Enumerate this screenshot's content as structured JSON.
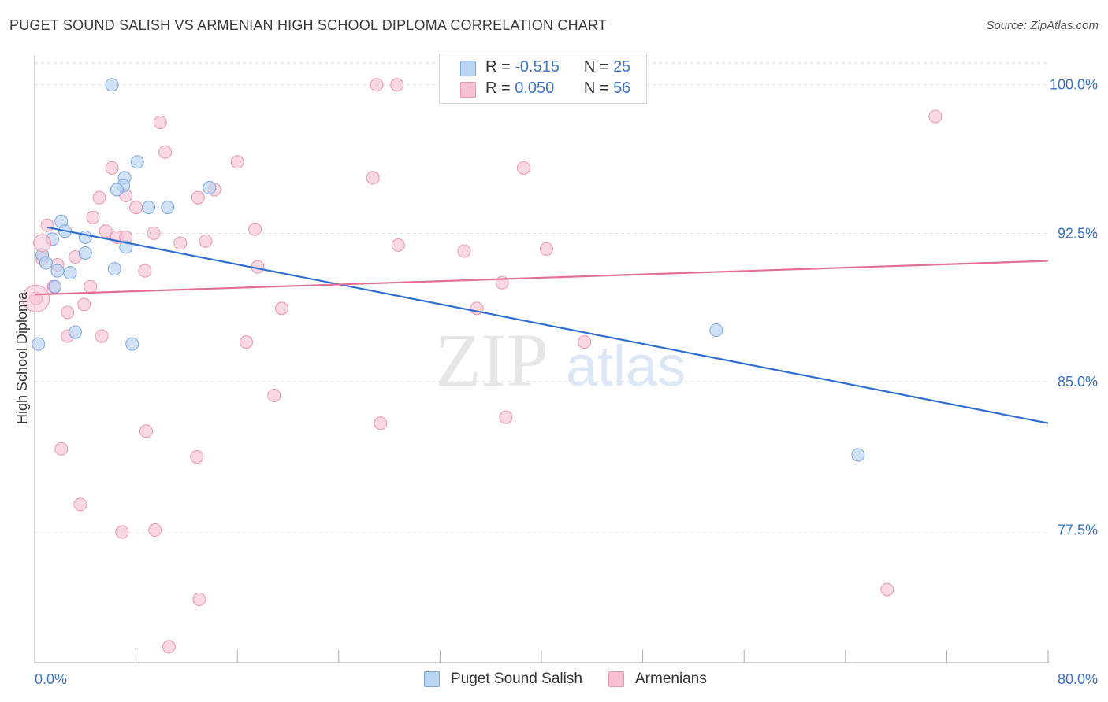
{
  "title": "PUGET SOUND SALISH VS ARMENIAN HIGH SCHOOL DIPLOMA CORRELATION CHART",
  "source": "Source: ZipAtlas.com",
  "watermark": {
    "zip": "ZIP",
    "atlas": "atlas"
  },
  "legend": {
    "r_label": "R =",
    "n_label": "N =",
    "rows": [
      {
        "r": "-0.515",
        "n": "25"
      },
      {
        "r": "0.050",
        "n": "56"
      }
    ]
  },
  "colors": {
    "blue_fill": "#b9d3f3",
    "blue_stroke": "#7aa6dc",
    "blue_line": "#2f6fcf",
    "pink_fill": "#f7c3d4",
    "pink_stroke": "#ea95b0",
    "pink_line": "#e07098",
    "tick_label": "#3b73c8",
    "grid": "#dcdcdc"
  },
  "chart_data": {
    "type": "scatter",
    "title": "PUGET SOUND SALISH VS ARMENIAN HIGH SCHOOL DIPLOMA CORRELATION CHART",
    "xlabel": "",
    "ylabel": "High School Diploma",
    "xlim": [
      0,
      80
    ],
    "ylim": [
      70.8,
      101.5
    ],
    "x_tick_labels": [
      "0.0%",
      "80.0%"
    ],
    "y_ticks": [
      77.5,
      85.0,
      92.5,
      100.0
    ],
    "y_tick_labels": [
      "77.5%",
      "85.0%",
      "92.5%",
      "100.0%"
    ],
    "grid": "horizontal dashed",
    "legend_position": "bottom",
    "series": [
      {
        "name": "Puget Sound Salish",
        "color": "blue",
        "trend": {
          "x": [
            1.0,
            80.0
          ],
          "y": [
            92.8,
            82.9
          ]
        },
        "points": [
          [
            6.1,
            100.0
          ],
          [
            8.1,
            96.1
          ],
          [
            7.1,
            95.3
          ],
          [
            7.0,
            94.9
          ],
          [
            6.5,
            94.7
          ],
          [
            13.8,
            94.8
          ],
          [
            9.0,
            93.8
          ],
          [
            10.5,
            93.8
          ],
          [
            2.1,
            93.1
          ],
          [
            2.4,
            92.6
          ],
          [
            1.4,
            92.2
          ],
          [
            4.0,
            92.3
          ],
          [
            0.6,
            91.4
          ],
          [
            4.0,
            91.5
          ],
          [
            7.2,
            91.8
          ],
          [
            0.9,
            91.0
          ],
          [
            1.8,
            90.6
          ],
          [
            2.8,
            90.5
          ],
          [
            6.3,
            90.7
          ],
          [
            1.6,
            89.8
          ],
          [
            3.2,
            87.5
          ],
          [
            0.3,
            86.9
          ],
          [
            7.7,
            86.9
          ],
          [
            53.8,
            87.6
          ],
          [
            65.0,
            81.3
          ]
        ]
      },
      {
        "name": "Armenians",
        "color": "pink",
        "trend": {
          "x": [
            0.0,
            80.0
          ],
          "y": [
            89.4,
            91.1
          ]
        },
        "points": [
          [
            27.0,
            100.0
          ],
          [
            28.6,
            100.0
          ],
          [
            32.5,
            100.0
          ],
          [
            71.1,
            98.4
          ],
          [
            9.9,
            98.1
          ],
          [
            10.3,
            96.6
          ],
          [
            16.0,
            96.1
          ],
          [
            6.1,
            95.8
          ],
          [
            38.6,
            95.8
          ],
          [
            26.7,
            95.3
          ],
          [
            14.2,
            94.7
          ],
          [
            7.2,
            94.4
          ],
          [
            12.9,
            94.3
          ],
          [
            5.1,
            94.3
          ],
          [
            8.0,
            93.8
          ],
          [
            4.6,
            93.3
          ],
          [
            1.0,
            92.9
          ],
          [
            17.4,
            92.7
          ],
          [
            5.6,
            92.6
          ],
          [
            9.4,
            92.5
          ],
          [
            6.5,
            92.3
          ],
          [
            7.2,
            92.3
          ],
          [
            11.5,
            92.0
          ],
          [
            13.5,
            92.1
          ],
          [
            28.7,
            91.9
          ],
          [
            40.4,
            91.7
          ],
          [
            33.9,
            91.6
          ],
          [
            0.6,
            91.2
          ],
          [
            3.2,
            91.3
          ],
          [
            1.8,
            90.9
          ],
          [
            17.6,
            90.8
          ],
          [
            8.7,
            90.6
          ],
          [
            36.9,
            90.0
          ],
          [
            4.4,
            89.8
          ],
          [
            1.5,
            89.8
          ],
          [
            0.1,
            89.2
          ],
          [
            3.9,
            88.9
          ],
          [
            19.5,
            88.7
          ],
          [
            34.9,
            88.7
          ],
          [
            2.6,
            88.5
          ],
          [
            2.6,
            87.3
          ],
          [
            5.3,
            87.3
          ],
          [
            16.7,
            87.0
          ],
          [
            43.4,
            87.0
          ],
          [
            18.9,
            84.3
          ],
          [
            27.3,
            82.9
          ],
          [
            37.2,
            83.2
          ],
          [
            8.8,
            82.5
          ],
          [
            2.1,
            81.6
          ],
          [
            12.8,
            81.2
          ],
          [
            3.6,
            78.8
          ],
          [
            9.5,
            77.5
          ],
          [
            6.9,
            77.4
          ],
          [
            13.0,
            74.0
          ],
          [
            67.3,
            74.5
          ],
          [
            10.6,
            71.6
          ]
        ]
      }
    ]
  }
}
